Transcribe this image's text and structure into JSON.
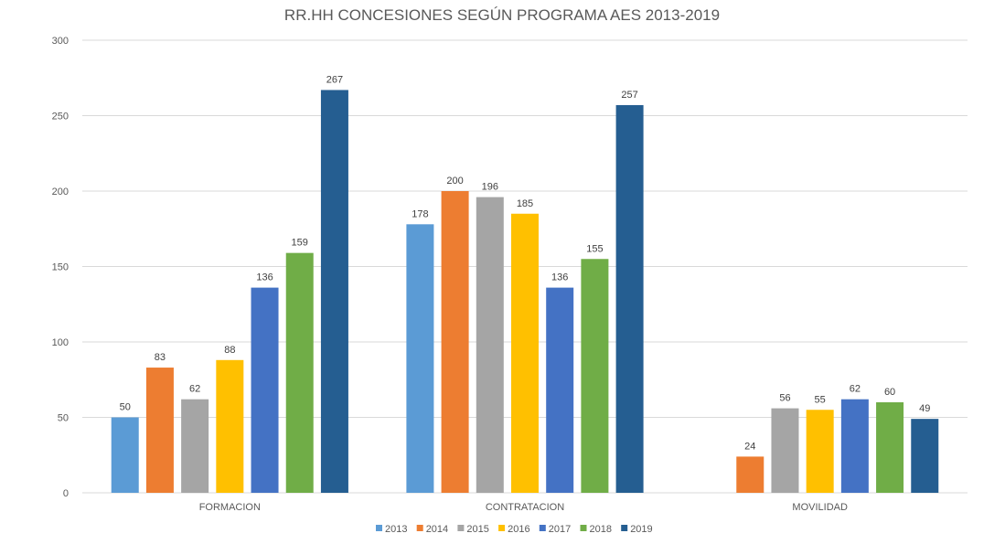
{
  "chart_data": {
    "type": "bar",
    "title": "RR.HH CONCESIONES SEGÚN PROGRAMA AES 2013-2019",
    "xlabel": "",
    "ylabel": "",
    "ylim": [
      0,
      300
    ],
    "yticks": [
      0,
      50,
      100,
      150,
      200,
      250,
      300
    ],
    "grid": true,
    "legend_position": "bottom",
    "categories": [
      "FORMACION",
      "CONTRATACION",
      "MOVILIDAD"
    ],
    "series": [
      {
        "name": "2013",
        "color": "#5b9bd5",
        "values": [
          50,
          178,
          null
        ]
      },
      {
        "name": "2014",
        "color": "#ed7d31",
        "values": [
          83,
          200,
          24
        ]
      },
      {
        "name": "2015",
        "color": "#a5a5a5",
        "values": [
          62,
          196,
          56
        ]
      },
      {
        "name": "2016",
        "color": "#ffc000",
        "values": [
          88,
          185,
          55
        ]
      },
      {
        "name": "2017",
        "color": "#4472c4",
        "values": [
          136,
          136,
          62
        ]
      },
      {
        "name": "2018",
        "color": "#70ad47",
        "values": [
          159,
          155,
          60
        ]
      },
      {
        "name": "2019",
        "color": "#255e91",
        "values": [
          267,
          257,
          49
        ]
      }
    ]
  }
}
